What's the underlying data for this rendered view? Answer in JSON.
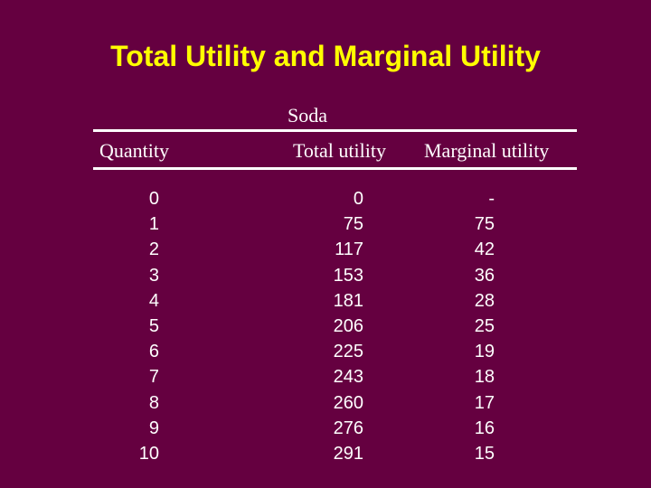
{
  "title": "Total Utility and Marginal Utility",
  "table": {
    "group_label": "Soda",
    "headers": {
      "quantity": "Quantity",
      "total_utility": "Total utility",
      "marginal_utility": "Marginal utility"
    },
    "rows": [
      {
        "quantity": "0",
        "total_utility": "0",
        "marginal_utility": "-"
      },
      {
        "quantity": "1",
        "total_utility": "75",
        "marginal_utility": "75"
      },
      {
        "quantity": "2",
        "total_utility": "117",
        "marginal_utility": "42"
      },
      {
        "quantity": "3",
        "total_utility": "153",
        "marginal_utility": "36"
      },
      {
        "quantity": "4",
        "total_utility": "181",
        "marginal_utility": "28"
      },
      {
        "quantity": "5",
        "total_utility": "206",
        "marginal_utility": "25"
      },
      {
        "quantity": "6",
        "total_utility": "225",
        "marginal_utility": "19"
      },
      {
        "quantity": "7",
        "total_utility": "243",
        "marginal_utility": "18"
      },
      {
        "quantity": "8",
        "total_utility": "260",
        "marginal_utility": "17"
      },
      {
        "quantity": "9",
        "total_utility": "276",
        "marginal_utility": "16"
      },
      {
        "quantity": "10",
        "total_utility": "291",
        "marginal_utility": "15"
      }
    ]
  },
  "colors": {
    "background": "#650040",
    "title": "#ffff00",
    "text": "#ffffff"
  }
}
